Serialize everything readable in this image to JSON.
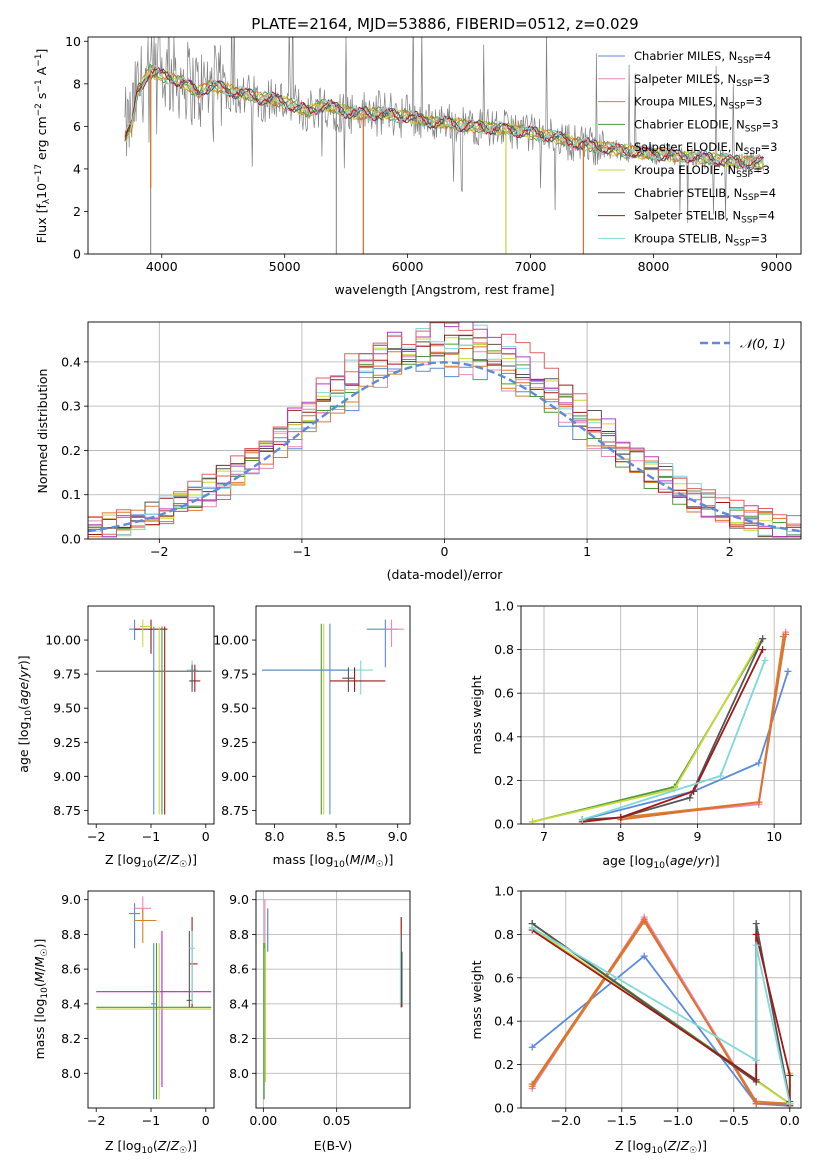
{
  "figure_title": "PLATE=2164, MJD=53886, FIBERID=0512, z=0.029",
  "colors": {
    "Chabrier MILES": "#5b8bd9",
    "Salpeter MILES": "#e88ab8",
    "Kroupa MILES": "#d6802a",
    "Chabrier ELODIE": "#4c9a3c",
    "Salpeter ELODIE": "#e07030",
    "Kroupa ELODIE": "#c8d83a",
    "Chabrier STELIB": "#555555",
    "Salpeter STELIB": "#a01818",
    "Kroupa STELIB": "#80d8d8",
    "gray": "#808080",
    "normal_curve": "#5b8bd9",
    "magenta": "#c020c0"
  },
  "chart_data": [
    {
      "id": "spectrum",
      "type": "line",
      "title": "PLATE=2164, MJD=53886, FIBERID=0512, z=0.029",
      "xlabel": "wavelength [Angstrom, rest frame]",
      "ylabel": "Flux [f_λ 10^-17 erg cm^-2 s^-1 A^-1]",
      "xlim": [
        3400,
        9200
      ],
      "ylim": [
        0,
        10.2
      ],
      "xticks": [
        4000,
        5000,
        6000,
        7000,
        8000,
        9000
      ],
      "yticks": [
        0,
        2,
        4,
        6,
        8,
        10
      ],
      "legend_placement": "upper-right",
      "legend": [
        "Chabrier MILES, N_SSP=4",
        "Salpeter MILES, N_SSP=3",
        "Kroupa MILES, N_SSP=3",
        "Chabrier ELODIE, N_SSP=3",
        "Salpeter ELODIE, N_SSP=3",
        "Kroupa ELODIE, N_SSP=3",
        "Chabrier STELIB, N_SSP=4",
        "Salpeter STELIB, N_SSP=4",
        "Kroupa STELIB, N_SSP=3"
      ],
      "data_trace": {
        "x": [
          3700,
          3750,
          3800,
          3850,
          3900,
          4000,
          4100,
          4200,
          4300,
          4400,
          4500,
          4600,
          4700,
          4800,
          4900,
          5000,
          5100,
          5200,
          5300,
          5400,
          5500,
          5600,
          5700,
          5800,
          5900,
          6000,
          6100,
          6200,
          6300,
          6400,
          6500,
          6600,
          6700,
          6800,
          6900,
          7000,
          7100,
          7200,
          7300,
          7400,
          7500,
          7600,
          7700,
          7800,
          7900,
          8000,
          8100,
          8200,
          8300,
          8400,
          8500,
          8600,
          8700,
          8800,
          8900
        ],
        "y": [
          5.8,
          6.2,
          7.6,
          8.2,
          8.4,
          8.5,
          8.3,
          8.2,
          7.7,
          7.9,
          7.8,
          7.6,
          7.4,
          7.3,
          7.3,
          7.1,
          6.9,
          6.7,
          7.1,
          6.9,
          6.6,
          6.6,
          6.6,
          6.6,
          6.6,
          6.5,
          6.3,
          6.2,
          6.3,
          6.1,
          6.0,
          6.0,
          5.9,
          5.9,
          5.8,
          5.7,
          5.6,
          5.5,
          5.3,
          5.2,
          5.1,
          5.0,
          4.9,
          4.8,
          4.8,
          4.7,
          4.7,
          4.6,
          4.6,
          4.5,
          4.4,
          4.4,
          4.3,
          4.3,
          4.3
        ]
      },
      "model_continuum": {
        "x": [
          3700,
          3760,
          3800,
          3900,
          4000,
          4100,
          4200,
          4300,
          4400,
          4500,
          4600,
          4700,
          4800,
          4900,
          5000,
          5100,
          5200,
          5300,
          5400,
          5500,
          5600,
          5700,
          5800,
          5900,
          6000,
          6100,
          6200,
          6300,
          6400,
          6500,
          6600,
          6700,
          6800,
          6900,
          7000,
          7100,
          7200,
          7300,
          7400,
          7500,
          7600,
          7700,
          7800,
          7900,
          8000,
          8100,
          8200,
          8300,
          8400,
          8500,
          8600,
          8700,
          8800,
          8900
        ],
        "y": [
          5.5,
          6.1,
          7.6,
          8.6,
          8.4,
          8.2,
          8.0,
          7.6,
          7.9,
          7.8,
          7.6,
          7.5,
          7.3,
          7.3,
          7.1,
          6.9,
          6.7,
          7.0,
          6.9,
          6.7,
          6.6,
          6.6,
          6.6,
          6.5,
          6.5,
          6.3,
          6.2,
          6.2,
          6.1,
          6.0,
          6.0,
          5.9,
          5.9,
          5.8,
          5.7,
          5.6,
          5.5,
          5.3,
          5.2,
          5.1,
          5.0,
          4.9,
          4.8,
          4.8,
          4.7,
          4.7,
          4.6,
          4.6,
          4.5,
          4.5,
          4.4,
          4.3,
          4.3,
          4.3
        ]
      },
      "masked_drops_x": [
        3910,
        5420,
        5640,
        6800,
        7430
      ]
    },
    {
      "id": "residuals",
      "type": "step-histogram",
      "xlabel": "(data-model)/error",
      "ylabel": "Normed distribution",
      "xlim": [
        -2.5,
        2.5
      ],
      "ylim": [
        0,
        0.49
      ],
      "xticks": [
        -2,
        -1,
        0,
        1,
        2
      ],
      "yticks": [
        0.0,
        0.1,
        0.2,
        0.3,
        0.4
      ],
      "grid": true,
      "legend_placement": "upper-right",
      "legend": [
        "𝒩(0, 1)"
      ]
    },
    {
      "id": "age_vs_Z",
      "type": "scatter-errorbars",
      "xlabel": "Z [log10(Z/Z☉)]",
      "ylabel": "age [log10(age/yr)]",
      "xlim": [
        -2.15,
        0.15
      ],
      "ylim": [
        8.65,
        10.25
      ],
      "xticks": [
        -2,
        -1,
        0
      ],
      "yticks": [
        8.75,
        9.0,
        9.25,
        9.5,
        9.75,
        10.0
      ],
      "grid": false
    },
    {
      "id": "age_vs_mass",
      "type": "scatter-errorbars",
      "xlabel": "mass [log10(M/M☉)]",
      "xlim": [
        7.85,
        9.1
      ],
      "ylim": [
        8.65,
        10.25
      ],
      "xticks": [
        8.0,
        8.5,
        9.0
      ],
      "yticks": [
        8.75,
        9.0,
        9.25,
        9.5,
        9.75,
        10.0
      ],
      "grid": false
    },
    {
      "id": "massweight_vs_age",
      "type": "line",
      "xlabel": "age [log10(age/yr)]",
      "ylabel": "mass weight",
      "xlim": [
        6.7,
        10.35
      ],
      "ylim": [
        0,
        1.0
      ],
      "xticks": [
        7,
        8,
        9,
        10
      ],
      "yticks": [
        0.0,
        0.2,
        0.4,
        0.6,
        0.8,
        1.0
      ],
      "grid": true,
      "series": [
        {
          "name": "Chabrier MILES",
          "x": [
            7.5,
            8.95,
            9.8,
            10.18
          ],
          "y": [
            0.02,
            0.15,
            0.28,
            0.7
          ]
        },
        {
          "name": "Salpeter MILES",
          "x": [
            8.0,
            9.8,
            10.15
          ],
          "y": [
            0.03,
            0.09,
            0.88
          ]
        },
        {
          "name": "Kroupa MILES",
          "x": [
            8.0,
            9.8,
            10.12
          ],
          "y": [
            0.03,
            0.1,
            0.86
          ]
        },
        {
          "name": "Chabrier ELODIE",
          "x": [
            6.85,
            8.7,
            9.85
          ],
          "y": [
            0.01,
            0.17,
            0.85
          ]
        },
        {
          "name": "Salpeter ELODIE",
          "x": [
            8.0,
            9.8,
            10.15
          ],
          "y": [
            0.02,
            0.1,
            0.87
          ]
        },
        {
          "name": "Kroupa ELODIE",
          "x": [
            6.85,
            8.7,
            9.8
          ],
          "y": [
            0.01,
            0.16,
            0.83
          ]
        },
        {
          "name": "Chabrier STELIB",
          "x": [
            7.5,
            8.0,
            8.9,
            9.85
          ],
          "y": [
            0.02,
            0.03,
            0.12,
            0.85
          ]
        },
        {
          "name": "Salpeter STELIB",
          "x": [
            7.5,
            8.0,
            8.95,
            9.85
          ],
          "y": [
            0.01,
            0.03,
            0.15,
            0.8
          ]
        },
        {
          "name": "Kroupa STELIB",
          "x": [
            7.5,
            9.3,
            9.88
          ],
          "y": [
            0.02,
            0.22,
            0.75
          ]
        }
      ]
    },
    {
      "id": "mass_vs_Z",
      "type": "scatter-errorbars",
      "xlabel": "Z [log10(Z/Z☉)]",
      "ylabel": "mass [log10(M/M☉)]",
      "xlim": [
        -2.15,
        0.15
      ],
      "ylim": [
        7.8,
        9.05
      ],
      "xticks": [
        -2,
        -1,
        0
      ],
      "yticks": [
        8.0,
        8.2,
        8.4,
        8.6,
        8.8,
        9.0
      ],
      "grid": false
    },
    {
      "id": "mass_vs_EBV",
      "type": "scatter-errorbars",
      "xlabel": "E(B-V)",
      "xlim": [
        -0.005,
        0.1
      ],
      "ylim": [
        7.8,
        9.05
      ],
      "xticks": [
        0.0,
        0.05
      ],
      "yticks": [
        8.0,
        8.2,
        8.4,
        8.6,
        8.8,
        9.0
      ],
      "grid": true
    },
    {
      "id": "massweight_vs_Z",
      "type": "line",
      "xlabel": "Z [log10(Z/Z☉)]",
      "ylabel": "mass weight",
      "xlim": [
        -2.4,
        0.1
      ],
      "ylim": [
        0,
        1.0
      ],
      "xticks": [
        -2.0,
        -1.5,
        -1.0,
        -0.5,
        0.0
      ],
      "yticks": [
        0.0,
        0.2,
        0.4,
        0.6,
        0.8,
        1.0
      ],
      "grid": true,
      "series": [
        {
          "name": "Chabrier MILES",
          "x": [
            -2.3,
            -1.3,
            -0.3,
            0.0
          ],
          "y": [
            0.28,
            0.7,
            0.02,
            0.01
          ]
        },
        {
          "name": "Salpeter MILES",
          "x": [
            -2.3,
            -1.3,
            -0.3,
            0.0
          ],
          "y": [
            0.09,
            0.88,
            0.03,
            0.02
          ]
        },
        {
          "name": "Kroupa MILES",
          "x": [
            -2.3,
            -1.3,
            -0.3,
            0.0
          ],
          "y": [
            0.1,
            0.86,
            0.03,
            0.02
          ]
        },
        {
          "name": "Chabrier ELODIE",
          "x": [
            -2.3,
            0.0,
            0.0
          ],
          "y": [
            0.85,
            0.02,
            0.15
          ]
        },
        {
          "name": "Salpeter ELODIE",
          "x": [
            -2.3,
            -1.3,
            -0.3,
            0.0
          ],
          "y": [
            0.11,
            0.87,
            0.02,
            0.02
          ]
        },
        {
          "name": "Kroupa ELODIE",
          "x": [
            -2.3,
            0.0,
            0.0
          ],
          "y": [
            0.83,
            0.02,
            0.16
          ]
        },
        {
          "name": "Chabrier STELIB",
          "x": [
            -2.3,
            -0.3,
            -0.3,
            0.0,
            0.0
          ],
          "y": [
            0.85,
            0.12,
            0.85,
            0.03,
            0.02
          ]
        },
        {
          "name": "Salpeter STELIB",
          "x": [
            -2.3,
            -0.3,
            -0.3,
            0.0,
            0.0
          ],
          "y": [
            0.82,
            0.13,
            0.8,
            0.15,
            0.01
          ]
        },
        {
          "name": "Kroupa STELIB",
          "x": [
            -2.3,
            -0.3,
            -0.3,
            0.0
          ],
          "y": [
            0.83,
            0.22,
            0.75,
            0.02
          ]
        }
      ]
    }
  ]
}
